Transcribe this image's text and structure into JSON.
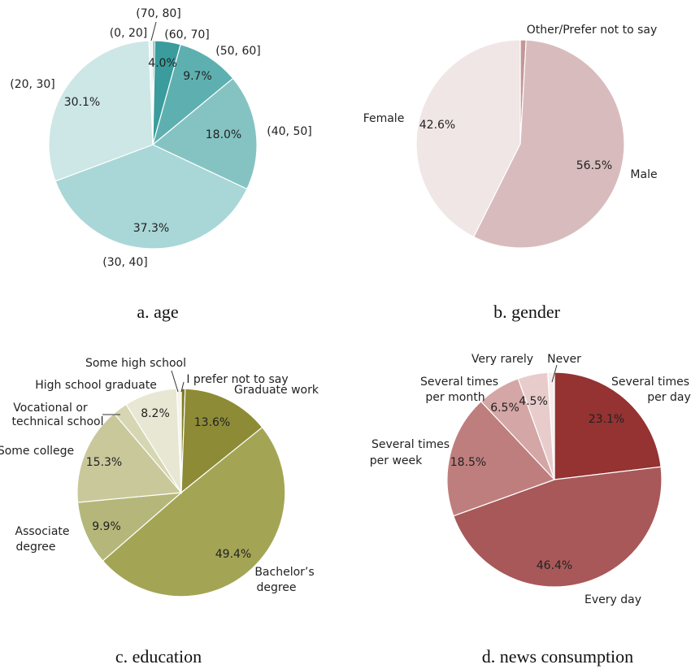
{
  "chart_data": [
    {
      "type": "pie",
      "caption": "a. age",
      "slices": [
        {
          "label": "(70, 80]",
          "value": 0.3,
          "pct_text": "",
          "color": "#1f7f80"
        },
        {
          "label": "(60, 70]",
          "value": 4.0,
          "pct_text": "4.0%",
          "color": "#3a9c9c"
        },
        {
          "label": "(50, 60]",
          "value": 9.7,
          "pct_text": "9.7%",
          "color": "#5eb0b0"
        },
        {
          "label": "(40, 50]",
          "value": 18.0,
          "pct_text": "18.0%",
          "color": "#85c3c3"
        },
        {
          "label": "(30, 40]",
          "value": 37.3,
          "pct_text": "37.3%",
          "color": "#a9d6d6"
        },
        {
          "label": "(20, 30]",
          "value": 30.1,
          "pct_text": "30.1%",
          "color": "#cde6e6"
        },
        {
          "label": "(0, 20]",
          "value": 0.6,
          "pct_text": "",
          "color": "#eef6f6"
        }
      ]
    },
    {
      "type": "pie",
      "caption": "b. gender",
      "slices": [
        {
          "label": "Other/Prefer not to say",
          "value": 0.9,
          "pct_text": "",
          "color": "#c49796"
        },
        {
          "label": "Male",
          "value": 56.5,
          "pct_text": "56.5%",
          "color": "#d8bcbd"
        },
        {
          "label": "Female",
          "value": 42.6,
          "pct_text": "42.6%",
          "color": "#f0e6e5"
        }
      ]
    },
    {
      "type": "pie",
      "caption": "c. education",
      "slices": [
        {
          "label": "I prefer not to say",
          "value": 0.6,
          "pct_text": "",
          "color": "#7f7b25"
        },
        {
          "label": "Graduate work",
          "value": 13.6,
          "pct_text": "13.6%",
          "color": "#8e8b36"
        },
        {
          "label": "Bachelor’s degree",
          "value": 49.4,
          "pct_text": "49.4%",
          "color": "#a3a555"
        },
        {
          "label": "Associate degree",
          "value": 9.9,
          "pct_text": "9.9%",
          "color": "#b5b77a"
        },
        {
          "label": "Some college",
          "value": 15.3,
          "pct_text": "15.3%",
          "color": "#c8c89a"
        },
        {
          "label": "Vocational or technical school",
          "value": 2.3,
          "pct_text": "",
          "color": "#d6d6b2"
        },
        {
          "label": "High school graduate",
          "value": 8.2,
          "pct_text": "8.2%",
          "color": "#e7e7d3"
        },
        {
          "label": "Some high school",
          "value": 0.7,
          "pct_text": "",
          "color": "#f4f4ea"
        }
      ]
    },
    {
      "type": "pie",
      "caption": "d. news consumption",
      "slices": [
        {
          "label": "Several times per day",
          "value": 23.1,
          "pct_text": "23.1%",
          "color": "#953232"
        },
        {
          "label": "Every day",
          "value": 46.4,
          "pct_text": "46.4%",
          "color": "#a85858"
        },
        {
          "label": "Several times per week",
          "value": 18.5,
          "pct_text": "18.5%",
          "color": "#bf7e7e"
        },
        {
          "label": "Several times per month",
          "value": 6.5,
          "pct_text": "6.5%",
          "color": "#d4a6a6"
        },
        {
          "label": "Very rarely",
          "value": 4.5,
          "pct_text": "4.5%",
          "color": "#e8cccc"
        },
        {
          "label": "Never",
          "value": 1.0,
          "pct_text": "",
          "color": "#f7eded"
        }
      ]
    }
  ]
}
